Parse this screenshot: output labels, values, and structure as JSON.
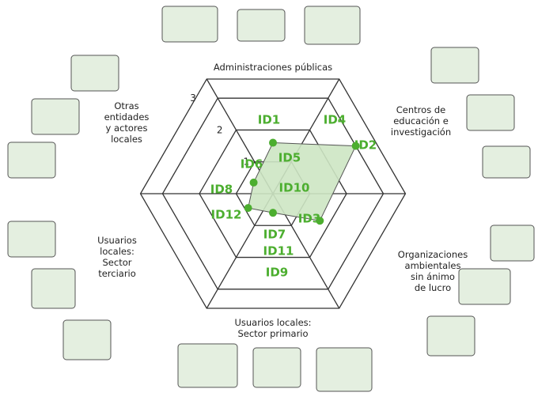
{
  "chart_data": {
    "type": "radar",
    "axes": [
      [
        "Administraciones públicas"
      ],
      [
        "Centros de",
        "educación e",
        "investigación"
      ],
      [
        "Organizaciones",
        "ambientales",
        "sin ánimo",
        "de lucro"
      ],
      [
        "Usuarios locales:",
        "Sector primario"
      ],
      [
        "Usuarios",
        "locales:",
        "Sector",
        "terciario"
      ],
      [
        "Otras",
        "entidades",
        "y actores",
        "locales"
      ]
    ],
    "values": [
      1.6,
      3.0,
      1.7,
      0.6,
      0.9,
      0.7
    ],
    "rlim": [
      0,
      3.6
    ],
    "rticks": [
      1,
      2,
      3
    ],
    "color": "#4cae2f",
    "annotations": [
      "ID1",
      "ID4",
      "ID2",
      "ID6",
      "ID5",
      "ID8",
      "ID10",
      "ID12",
      "ID3",
      "ID7",
      "ID11",
      "ID9"
    ]
  }
}
